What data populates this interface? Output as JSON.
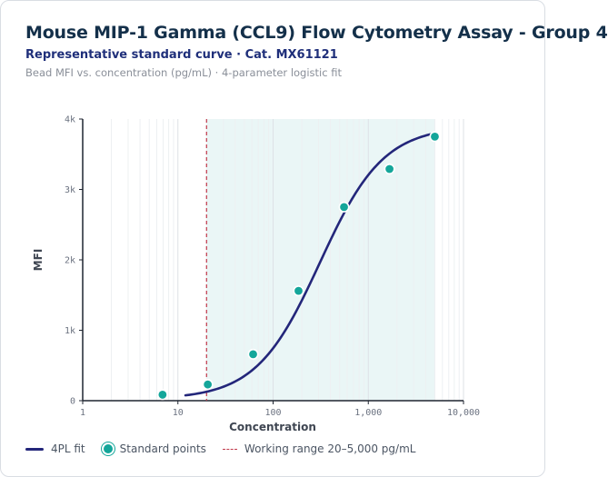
{
  "header": {
    "title": "Mouse MIP-1 Gamma (CCL9) Flow Cytometry Assay - Group 4",
    "subtitle": "Representative standard curve · Cat. MX61121",
    "caption": "Bead MFI vs. concentration (pg/mL) · 4-parameter logistic fit"
  },
  "chart_data": {
    "type": "scatter",
    "title": "Mouse MIP-1 Gamma (CCL9) Flow Cytometry Assay - Group 4",
    "subtitle": "Representative standard curve · Cat. MX61121",
    "xlabel": "Concentration",
    "ylabel": "MFI",
    "x_scale": "log",
    "xlim": [
      1,
      10000
    ],
    "ylim": [
      0,
      4000
    ],
    "x_ticks": [
      1,
      10,
      100,
      1000,
      10000
    ],
    "x_tick_labels": [
      "1",
      "10",
      "100",
      "1,000",
      "10,000"
    ],
    "y_ticks": [
      0,
      1000,
      2000,
      3000,
      4000
    ],
    "y_tick_labels": [
      "0",
      "1k",
      "2k",
      "3k",
      "4k"
    ],
    "grid": "vertical",
    "legend_position": "bottom-left",
    "series": [
      {
        "name": "Standard points",
        "kind": "scatter",
        "color": "#14a69a",
        "points": [
          {
            "x": 6.9,
            "y": 85
          },
          {
            "x": 20.6,
            "y": 230
          },
          {
            "x": 61.7,
            "y": 660
          },
          {
            "x": 185,
            "y": 1560
          },
          {
            "x": 556,
            "y": 2750
          },
          {
            "x": 1670,
            "y": 3290
          },
          {
            "x": 5000,
            "y": 3750
          }
        ]
      },
      {
        "name": "4PL fit",
        "kind": "line",
        "color": "#23267a",
        "params": {
          "a": 20,
          "b": 1.3,
          "c": 310,
          "d": 3900
        },
        "x_range": [
          12,
          5000
        ]
      }
    ],
    "annotations": [
      {
        "name": "Working range 20–5,000 pg/mL",
        "type": "range",
        "x_start": 20,
        "x_end": 5000,
        "color": "#c0394a",
        "fill": "#eaf6f6"
      }
    ]
  },
  "legend": {
    "fit_label": "4PL fit",
    "points_label": "Standard points",
    "range_label": "Working range 20–5,000 pg/mL"
  }
}
